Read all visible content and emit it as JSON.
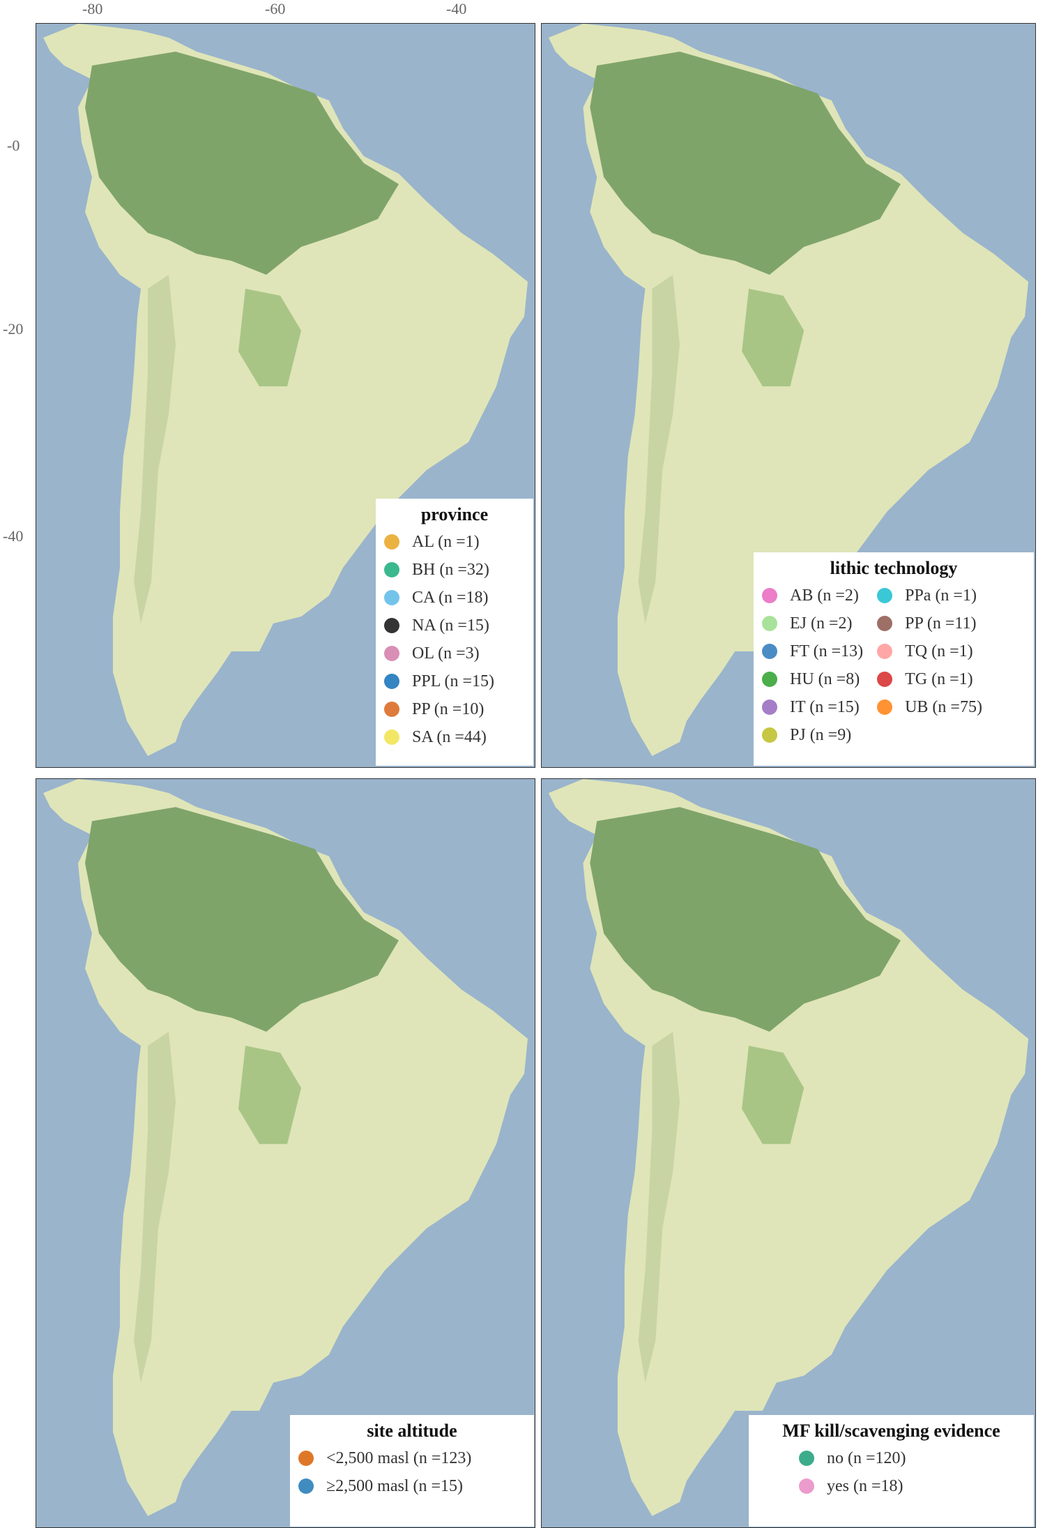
{
  "axes": {
    "x_ticks": [
      "-80",
      "-60",
      "-40"
    ],
    "y_ticks": [
      "-0",
      "-20",
      "-40"
    ]
  },
  "panels": [
    {
      "id": "province",
      "legend_title": "province",
      "entries": [
        {
          "label": "AL (n =1)",
          "color": "#e8a520"
        },
        {
          "label": "BH (n =32)",
          "color": "#1aab7a"
        },
        {
          "label": "CA (n =18)",
          "color": "#5cb8e8"
        },
        {
          "label": "NA (n =15)",
          "color": "#111111"
        },
        {
          "label": "OL (n =3)",
          "color": "#d27aa8"
        },
        {
          "label": "PPL (n =15)",
          "color": "#1170b8"
        },
        {
          "label": "PP (n =10)",
          "color": "#d8641a"
        },
        {
          "label": "SA (n =44)",
          "color": "#f0e34a"
        }
      ]
    },
    {
      "id": "lithic",
      "legend_title": "lithic technology",
      "entries": [
        {
          "label": "AB (n =2)",
          "color": "#e866c0"
        },
        {
          "label": "EJ (n =2)",
          "color": "#99dd88"
        },
        {
          "label": "FT (n =13)",
          "color": "#2a78b8"
        },
        {
          "label": "HU (n =8)",
          "color": "#2ca02c"
        },
        {
          "label": "IT (n =15)",
          "color": "#9467bd"
        },
        {
          "label": "PJ (n =9)",
          "color": "#bcbd22"
        },
        {
          "label": "PPa (n =1)",
          "color": "#17becf"
        },
        {
          "label": "PP (n =11)",
          "color": "#8c564b"
        },
        {
          "label": "TQ (n =1)",
          "color": "#ff9896"
        },
        {
          "label": "TG (n =1)",
          "color": "#d62728"
        },
        {
          "label": "UB (n =75)",
          "color": "#ff7f0e"
        }
      ]
    },
    {
      "id": "altitude",
      "legend_title": "site altitude",
      "entries": [
        {
          "label": "<2,500 masl (n =123)",
          "color": "#d95f02"
        },
        {
          "label": "≥2,500 masl (n =15)",
          "color": "#1f78b4"
        }
      ]
    },
    {
      "id": "mf",
      "legend_title": "MF kill/scavenging evidence",
      "entries": [
        {
          "label": "no (n =120)",
          "color": "#1b9e77"
        },
        {
          "label": "yes (n =18)",
          "color": "#e78ac3"
        }
      ]
    }
  ]
}
